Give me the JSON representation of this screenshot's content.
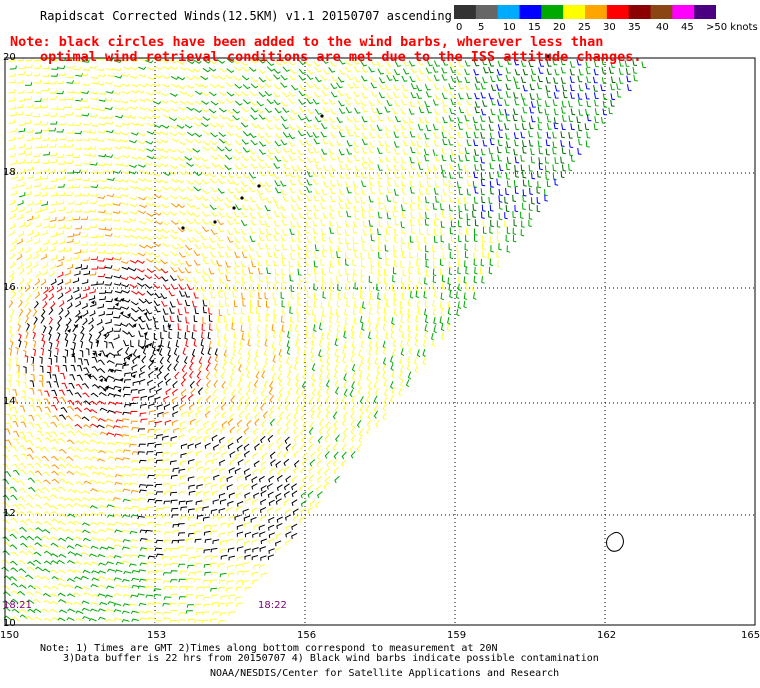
{
  "title": "Rapidscat Corrected Winds(12.5KM) v1.1 20150707 ascending",
  "notes": [
    "Note: black circles have been added to the wind barbs, wherever less than",
    "optimal wind retrieval conditions are met due to the ISS attitude changes."
  ],
  "colorbar": {
    "labels": [
      "0",
      "5",
      "10",
      "15",
      "20",
      "25",
      "30",
      "35",
      "40",
      "45",
      ">50 knots"
    ],
    "colors": [
      "#333333",
      "#666666",
      "#00aaff",
      "#0000ff",
      "#00aa00",
      "#ffff00",
      "#ffa500",
      "#ff0000",
      "#8b0000",
      "#8b4513",
      "#ff00ff",
      "#4b0082"
    ]
  },
  "map": {
    "lat_labels": [
      "20",
      "18",
      "16",
      "14",
      "12",
      "10"
    ],
    "lon_labels": [
      "150",
      "153",
      "156",
      "159",
      "162",
      "165"
    ],
    "time_labels": [
      "18:21",
      "18:22"
    ],
    "barb_colors": {
      "black": "#000000",
      "yellow": "#ffff33",
      "orange": "#ff9900",
      "red": "#ff0000",
      "darkred": "#aa0000",
      "green": "#00aa00",
      "darkgreen": "#006600",
      "blue": "#0000ff",
      "purple": "#aa00ff"
    }
  },
  "footer": {
    "line1": "Note: 1) Times are GMT 2)Times along bottom correspond to measurement at 20N",
    "line2": "3)Data buffer is 22 hrs from 20150707 4) Black wind barbs indicate possible contamination",
    "line3": "NOAA/NESDIS/Center for Satellite Applications and Research"
  }
}
